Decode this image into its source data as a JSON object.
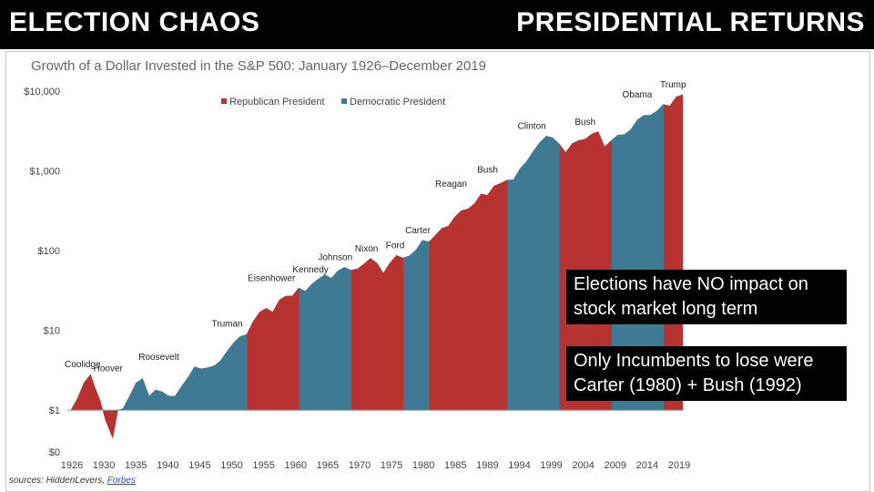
{
  "banner": {
    "left_title": "ELECTION CHAOS",
    "right_title": "PRESIDENTIAL RETURNS"
  },
  "chart_data": {
    "type": "area",
    "title": "Growth of a Dollar Invested in the S&P 500: January 1926–December 2019",
    "xlabel": "",
    "ylabel": "",
    "y_scale": "log",
    "ylim": [
      0.3,
      10000
    ],
    "y_ticks": [
      {
        "label": "$10,000",
        "value": 10000
      },
      {
        "label": "$1,000",
        "value": 1000
      },
      {
        "label": "$100",
        "value": 100
      },
      {
        "label": "$10",
        "value": 10
      },
      {
        "label": "$1",
        "value": 1
      },
      {
        "label": "$0",
        "value": 0.3
      }
    ],
    "x_ticks": [
      "1926",
      "1930",
      "1935",
      "1940",
      "1945",
      "1950",
      "1955",
      "1960",
      "1965",
      "1970",
      "1975",
      "1980",
      "1985",
      "1989",
      "1994",
      "1999",
      "2004",
      "2009",
      "2014",
      "2019"
    ],
    "xlim": [
      1926,
      2020
    ],
    "legend": [
      {
        "name": "Republican President",
        "color": "#b83232"
      },
      {
        "name": "Democratic President",
        "color": "#3f7a95"
      }
    ],
    "legend_position": "top-left",
    "colors": {
      "R": "#b83232",
      "D": "#3f7a95"
    },
    "points": [
      [
        1926,
        1
      ],
      [
        1927,
        1.4
      ],
      [
        1928,
        2.2
      ],
      [
        1929,
        2.8
      ],
      [
        1929.7,
        1.9
      ],
      [
        1930.5,
        1.3
      ],
      [
        1931.3,
        0.75
      ],
      [
        1932.4,
        0.45
      ],
      [
        1933.2,
        1.0
      ],
      [
        1934,
        1.05
      ],
      [
        1935,
        1.5
      ],
      [
        1936,
        2.2
      ],
      [
        1937,
        2.5
      ],
      [
        1938,
        1.5
      ],
      [
        1939,
        1.8
      ],
      [
        1940,
        1.7
      ],
      [
        1941,
        1.5
      ],
      [
        1942,
        1.5
      ],
      [
        1943,
        2.0
      ],
      [
        1944,
        2.6
      ],
      [
        1945,
        3.5
      ],
      [
        1946,
        3.3
      ],
      [
        1947,
        3.4
      ],
      [
        1948,
        3.6
      ],
      [
        1949,
        4.2
      ],
      [
        1950,
        5.5
      ],
      [
        1951,
        7.0
      ],
      [
        1952,
        8.4
      ],
      [
        1953,
        8.9
      ],
      [
        1954,
        13
      ],
      [
        1955,
        17
      ],
      [
        1956,
        19
      ],
      [
        1957,
        17
      ],
      [
        1958,
        24
      ],
      [
        1959,
        27
      ],
      [
        1960,
        27
      ],
      [
        1961,
        34
      ],
      [
        1962,
        31
      ],
      [
        1963,
        38
      ],
      [
        1964,
        44
      ],
      [
        1965,
        50
      ],
      [
        1966,
        45
      ],
      [
        1967,
        56
      ],
      [
        1968,
        62
      ],
      [
        1969,
        57
      ],
      [
        1970,
        59
      ],
      [
        1971,
        68
      ],
      [
        1972,
        80
      ],
      [
        1973,
        70
      ],
      [
        1974,
        52
      ],
      [
        1975,
        70
      ],
      [
        1976,
        87
      ],
      [
        1977,
        81
      ],
      [
        1978,
        86
      ],
      [
        1979,
        102
      ],
      [
        1980,
        135
      ],
      [
        1981,
        129
      ],
      [
        1982,
        156
      ],
      [
        1983,
        191
      ],
      [
        1984,
        203
      ],
      [
        1985,
        267
      ],
      [
        1986,
        317
      ],
      [
        1987,
        334
      ],
      [
        1988,
        389
      ],
      [
        1989,
        512
      ],
      [
        1990,
        496
      ],
      [
        1991,
        647
      ],
      [
        1992,
        696
      ],
      [
        1993,
        766
      ],
      [
        1994,
        776
      ],
      [
        1995,
        1067
      ],
      [
        1996,
        1312
      ],
      [
        1997,
        1750
      ],
      [
        1998,
        2250
      ],
      [
        1999,
        2730
      ],
      [
        2000,
        2600
      ],
      [
        2001,
        2180
      ],
      [
        2002,
        1700
      ],
      [
        2003,
        2200
      ],
      [
        2004,
        2400
      ],
      [
        2005,
        2500
      ],
      [
        2006,
        2900
      ],
      [
        2007,
        3100
      ],
      [
        2008,
        2000
      ],
      [
        2009,
        2400
      ],
      [
        2010,
        2800
      ],
      [
        2011,
        2850
      ],
      [
        2012,
        3300
      ],
      [
        2013,
        4350
      ],
      [
        2014,
        4950
      ],
      [
        2015,
        5000
      ],
      [
        2016,
        5600
      ],
      [
        2017,
        6800
      ],
      [
        2018,
        6500
      ],
      [
        2019,
        8500
      ],
      [
        2019.9,
        9000
      ]
    ],
    "terms": [
      {
        "name": "Coolidge",
        "party": "R",
        "start": 1926,
        "end": 1929.2,
        "label_year": 1927.8
      },
      {
        "name": "Hoover",
        "party": "R",
        "start": 1929.2,
        "end": 1933.2,
        "label_year": 1931.7
      },
      {
        "name": "Roosevelt",
        "party": "D",
        "start": 1933.2,
        "end": 1945.3,
        "label_year": 1939.5
      },
      {
        "name": "Truman",
        "party": "D",
        "start": 1945.3,
        "end": 1953.1,
        "label_year": 1950.0
      },
      {
        "name": "Eisenhower",
        "party": "R",
        "start": 1953.1,
        "end": 1961.1,
        "label_year": 1956.8
      },
      {
        "name": "Kennedy",
        "party": "D",
        "start": 1961.1,
        "end": 1963.9,
        "label_year": 1962.8
      },
      {
        "name": "Johnson",
        "party": "D",
        "start": 1963.9,
        "end": 1969.1,
        "label_year": 1966.6
      },
      {
        "name": "Nixon",
        "party": "R",
        "start": 1969.1,
        "end": 1974.6,
        "label_year": 1971.4
      },
      {
        "name": "Ford",
        "party": "R",
        "start": 1974.6,
        "end": 1977.1,
        "label_year": 1975.8
      },
      {
        "name": "Carter",
        "party": "D",
        "start": 1977.1,
        "end": 1981.1,
        "label_year": 1979.3
      },
      {
        "name": "Reagan",
        "party": "R",
        "start": 1981.1,
        "end": 1989.1,
        "label_year": 1984.4
      },
      {
        "name": "Bush",
        "party": "R",
        "start": 1989.1,
        "end": 1993.1,
        "label_year": 1990.0
      },
      {
        "name": "Clinton",
        "party": "D",
        "start": 1993.1,
        "end": 2001.1,
        "label_year": 1996.8
      },
      {
        "name": "Bush",
        "party": "R",
        "start": 2001.1,
        "end": 2009.1,
        "label_year": 2005.0
      },
      {
        "name": "Obama",
        "party": "D",
        "start": 2009.1,
        "end": 2017.1,
        "label_year": 2013.0
      },
      {
        "name": "Trump",
        "party": "R",
        "start": 2017.1,
        "end": 2020,
        "label_year": 2018.5
      }
    ]
  },
  "callouts": [
    {
      "line1": "Elections have NO impact on",
      "line2": "stock market long term"
    },
    {
      "line1": "Only Incumbents to lose were",
      "line2": "Carter (1980) + Bush (1992)"
    }
  ],
  "sources": {
    "prefix": "sources: HiddenLevers, ",
    "link": "Forbes"
  }
}
